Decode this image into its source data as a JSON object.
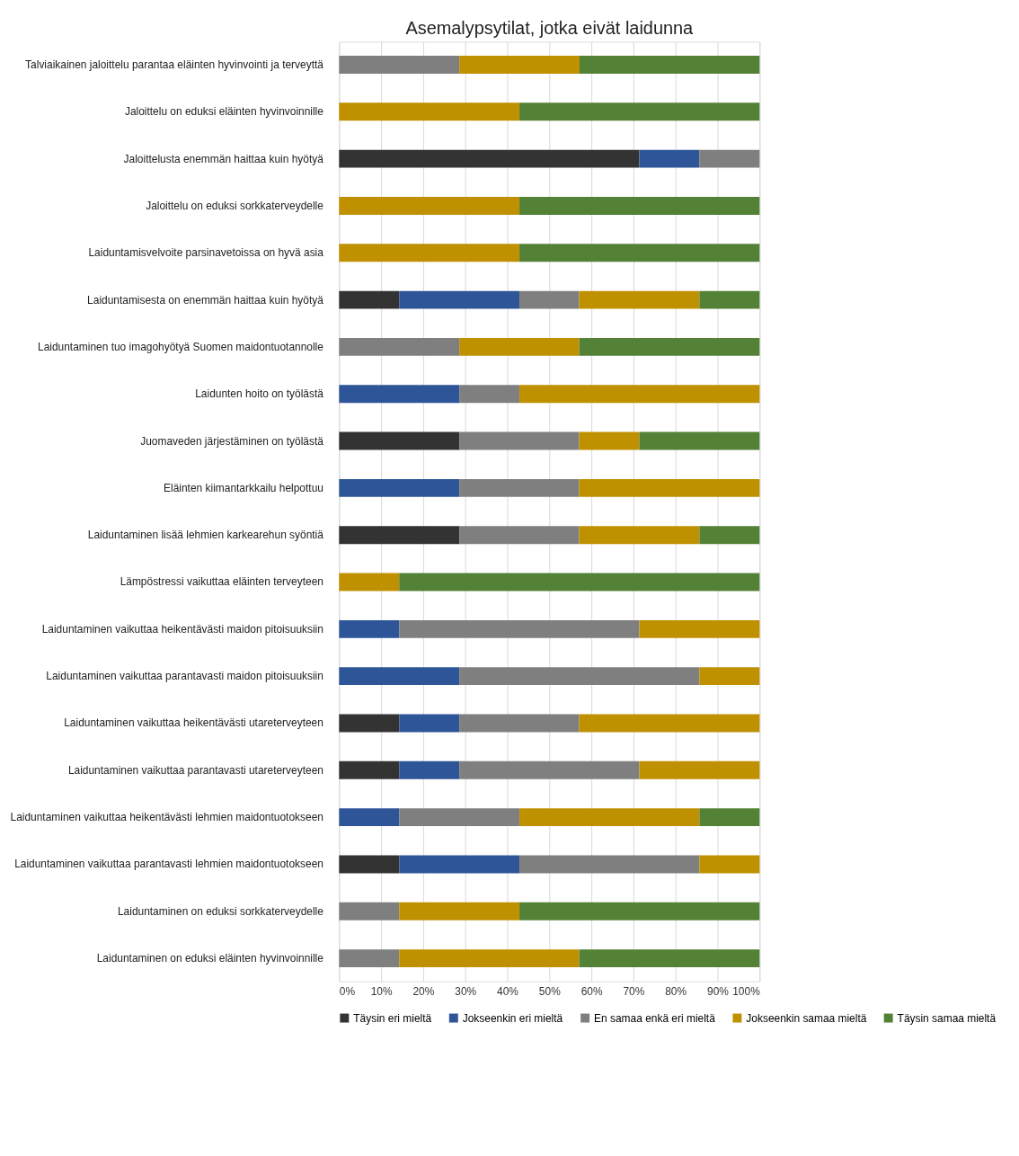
{
  "chart_data": {
    "type": "bar",
    "orientation": "horizontal",
    "stacked": true,
    "title": "Asemalypsytilat, jotka eivät laidunna",
    "categories": [
      "Talviaikainen jaloittelu parantaa eläinten hyvinvointi ja terveyttä",
      "Jaloittelu on eduksi eläinten hyvinvoinnille",
      "Jaloittelusta enemmän haittaa kuin hyötyä",
      "Jaloittelu on eduksi sorkkaterveydelle",
      "Laiduntamisvelvoite parsinavetoissa on hyvä asia",
      "Laiduntamisesta on enemmän haittaa kuin hyötyä",
      "Laiduntaminen tuo imagohyötyä Suomen maidontuotannolle",
      "Laidunten hoito on työlästä",
      "Juomaveden järjestäminen on työlästä",
      "Eläinten kiimantarkkailu helpottuu",
      "Laiduntaminen lisää lehmien karkearehun syöntiä",
      "Lämpöstressi vaikuttaa eläinten terveyteen",
      "Laiduntaminen vaikuttaa heikentävästi maidon pitoisuuksiin",
      "Laiduntaminen vaikuttaa parantavasti maidon pitoisuuksiin",
      "Laiduntaminen vaikuttaa heikentävästi utareterveyteen",
      "Laiduntaminen vaikuttaa parantavasti utareterveyteen",
      "Laiduntaminen vaikuttaa heikentävästi lehmien maidontuotokseen",
      "Laiduntaminen vaikuttaa parantavasti lehmien maidontuotokseen",
      "Laiduntaminen on eduksi sorkkaterveydelle",
      "Laiduntaminen on eduksi eläinten hyvinvoinnille"
    ],
    "series": [
      {
        "name": "Täysin eri mieltä",
        "color": "#333333",
        "values": [
          0,
          0,
          71.4,
          0,
          0,
          14.3,
          0,
          0,
          28.6,
          0,
          28.6,
          0,
          0,
          0,
          14.3,
          14.3,
          0,
          14.3,
          0,
          0
        ]
      },
      {
        "name": "Jokseenkin eri mieltä",
        "color": "#2e5597",
        "values": [
          0,
          0,
          14.3,
          0,
          0,
          28.6,
          0,
          28.6,
          0,
          28.6,
          0,
          0,
          14.3,
          28.6,
          14.3,
          14.3,
          14.3,
          28.6,
          0,
          0
        ]
      },
      {
        "name": "En samaa enkä eri mieltä",
        "color": "#7f7f7f",
        "values": [
          28.6,
          0,
          14.3,
          0,
          0,
          14.2,
          28.6,
          14.3,
          28.5,
          28.5,
          28.5,
          0,
          57.1,
          57.1,
          28.5,
          42.8,
          28.6,
          42.8,
          14.3,
          14.3
        ]
      },
      {
        "name": "Jokseenkin samaa mieltä",
        "color": "#bf9000",
        "values": [
          28.6,
          42.9,
          0,
          42.9,
          42.9,
          28.6,
          28.5,
          57.1,
          14.3,
          42.9,
          28.6,
          14.3,
          28.6,
          14.3,
          42.9,
          28.6,
          42.8,
          14.3,
          28.6,
          42.8
        ]
      },
      {
        "name": "Täysin samaa mieltä",
        "color": "#538135",
        "values": [
          42.8,
          57.1,
          0,
          57.1,
          57.1,
          14.3,
          42.9,
          0,
          28.6,
          0,
          14.3,
          85.7,
          0,
          0,
          0,
          0,
          14.3,
          0,
          57.1,
          42.9
        ]
      }
    ],
    "xlim": [
      0,
      100
    ],
    "xticks": [
      {
        "value": 0,
        "label": "0%"
      },
      {
        "value": 10,
        "label": "10%"
      },
      {
        "value": 20,
        "label": "20%"
      },
      {
        "value": 30,
        "label": "30%"
      },
      {
        "value": 40,
        "label": "40%"
      },
      {
        "value": 50,
        "label": "50%"
      },
      {
        "value": 60,
        "label": "60%"
      },
      {
        "value": 70,
        "label": "70%"
      },
      {
        "value": 80,
        "label": "80%"
      },
      {
        "value": 90,
        "label": "90%"
      },
      {
        "value": 100,
        "label": "100%"
      }
    ],
    "grid": "x",
    "legend": "bottom"
  }
}
